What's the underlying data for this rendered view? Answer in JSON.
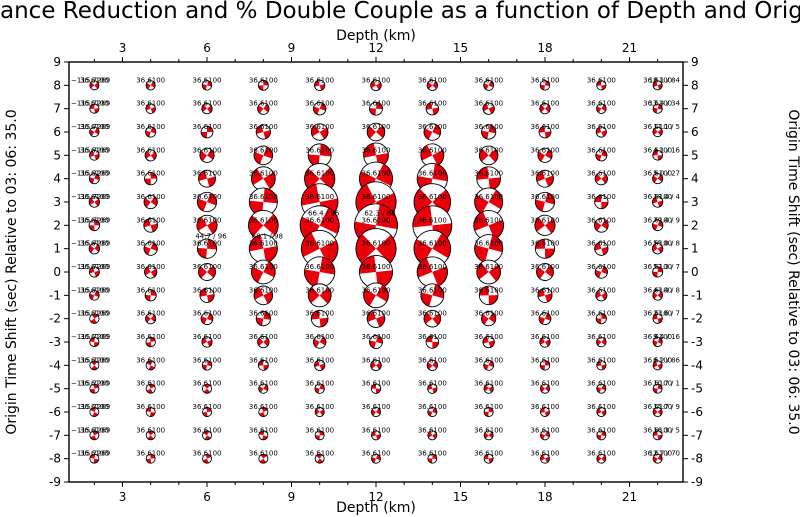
{
  "chart_data": {
    "type": "scatter",
    "title": "ance Reduction and % Double Couple as a function of Depth and Origin Time Sh",
    "xlabel": "Depth (km)",
    "ylabel": "Origin Time Shift (sec) Relative to 03: 06: 35.0",
    "xlim": [
      1.1,
      22.9
    ],
    "ylim": [
      -9,
      9
    ],
    "xticks": [
      3,
      6,
      9,
      12,
      15,
      18,
      21
    ],
    "yticks": [
      -9,
      -8,
      -7,
      -6,
      -5,
      -4,
      -3,
      -2,
      -1,
      0,
      1,
      2,
      3,
      4,
      5,
      6,
      7,
      8,
      9
    ],
    "grid": false,
    "depths": [
      2,
      4,
      6,
      8,
      10,
      12,
      14,
      16,
      18,
      20,
      22
    ],
    "time_shifts": [
      8,
      7,
      6,
      5,
      4,
      3,
      2,
      1,
      0,
      -1,
      -2,
      -3,
      -4,
      -5,
      -6,
      -7,
      -8
    ],
    "right_labels": [
      {
        "y": 8,
        "text": "18.1 / 84"
      },
      {
        "y": 7,
        "text": "17.4 / 34"
      },
      {
        "y": 6,
        "text": "11.1 / 5"
      },
      {
        "y": 5,
        "text": "4.1 / 16"
      },
      {
        "y": 4,
        "text": "5.0 / 27"
      },
      {
        "y": 3,
        "text": "18.4 / 4"
      },
      {
        "y": 2,
        "text": "39.4 / 9"
      },
      {
        "y": 1,
        "text": "55.8 / 8"
      },
      {
        "y": 0,
        "text": "57.3 / 7"
      },
      {
        "y": -1,
        "text": "43.4 / 8"
      },
      {
        "y": -2,
        "text": "23.6 / 7"
      },
      {
        "y": -3,
        "text": "9.4 / 16"
      },
      {
        "y": -4,
        "text": "6.2 / 86"
      },
      {
        "y": -5,
        "text": "10.7 / 1"
      },
      {
        "y": -6,
        "text": "15.7 / 9"
      },
      {
        "y": -7,
        "text": "16.3 / 5"
      },
      {
        "y": -8,
        "text": "12.7 / 70"
      }
    ],
    "left_label": "−115.7269",
    "cell_label": "36.6100",
    "highlight_labels": [
      {
        "x": 12,
        "y": 2,
        "text": "62.3 / 88"
      },
      {
        "x": 8,
        "y": 1,
        "text": "68.1 / 98"
      },
      {
        "x": 10,
        "y": 2,
        "text": "66.4 / 96"
      },
      {
        "x": 6,
        "y": 1,
        "text": "44.7 / 96"
      }
    ],
    "peak": {
      "x": 12,
      "y": 2,
      "value": 62.3
    }
  }
}
